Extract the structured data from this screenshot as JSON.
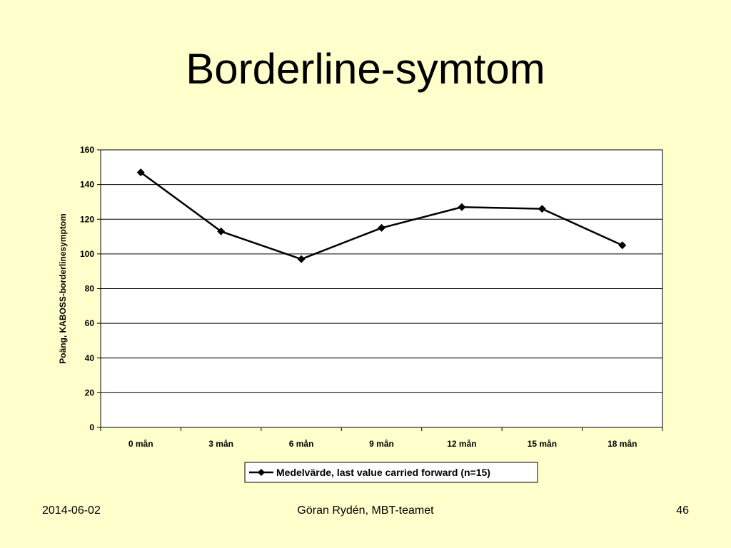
{
  "slide": {
    "title": "Borderline-symtom"
  },
  "chart_data": {
    "type": "line",
    "categories": [
      "0 mån",
      "3 mån",
      "6 mån",
      "9 mån",
      "12 mån",
      "15 mån",
      "18 mån"
    ],
    "series": [
      {
        "name": "Medelvärde, last value carried forward (n=15)",
        "values": [
          147,
          113,
          97,
          115,
          127,
          126,
          105
        ]
      }
    ],
    "ylabel": "Poäng, KABOSS-borderlinesymptom",
    "xlabel": "",
    "ylim": [
      0,
      160
    ],
    "yticks": [
      0,
      20,
      40,
      60,
      80,
      100,
      120,
      140,
      160
    ],
    "grid": true,
    "legend_position": "bottom",
    "marker": "diamond",
    "line_color": "#000000",
    "plot_background": "#FFFFFF"
  },
  "footer": {
    "date": "2014-06-02",
    "author": "Göran Rydén, MBT-teamet",
    "page": "46"
  }
}
